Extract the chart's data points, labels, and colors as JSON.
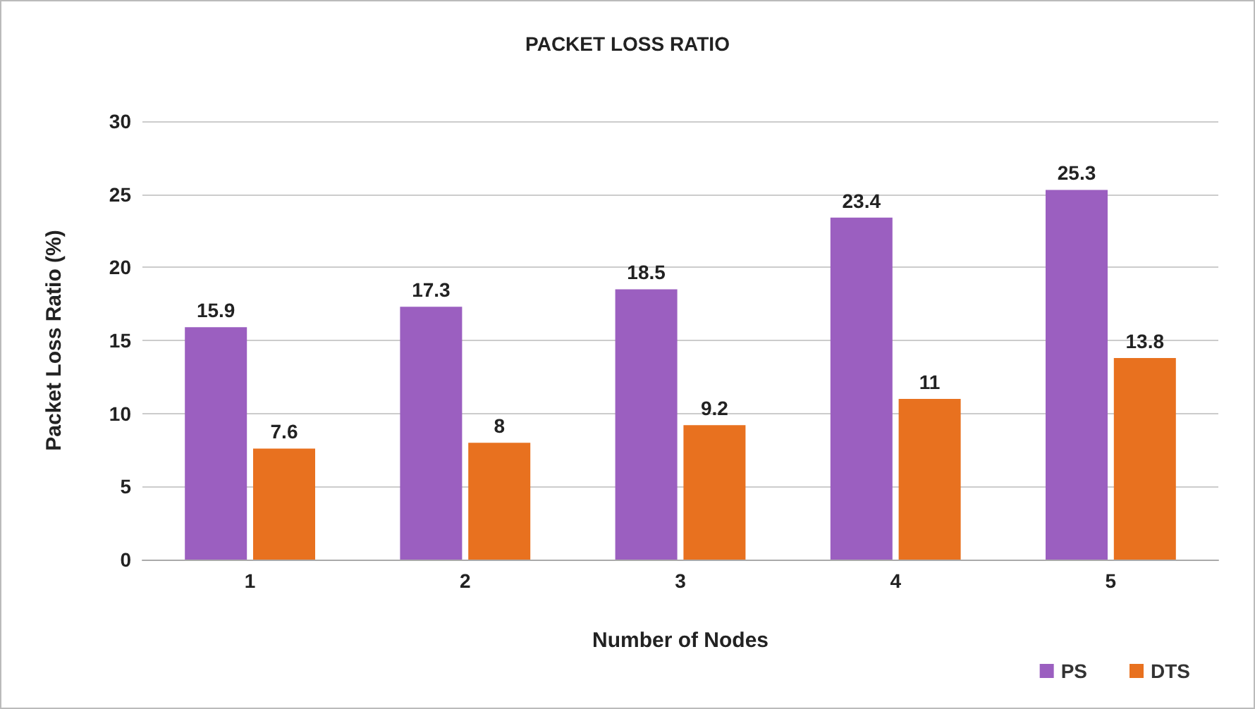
{
  "chart_data": {
    "type": "bar",
    "title": "PACKET LOSS RATIO",
    "xlabel": "Number of Nodes",
    "ylabel": "Packet Loss Ratio (%)",
    "categories": [
      "1",
      "2",
      "3",
      "4",
      "5"
    ],
    "series": [
      {
        "name": "PS",
        "color": "#9b5fc0",
        "values": [
          15.9,
          17.3,
          18.5,
          23.4,
          25.3
        ]
      },
      {
        "name": "DTS",
        "color": "#e8711f",
        "values": [
          7.6,
          8,
          9.2,
          11,
          13.8
        ]
      }
    ],
    "ylim": [
      0,
      30
    ],
    "yticks": [
      0,
      5,
      10,
      15,
      20,
      25,
      30
    ],
    "grid": "y",
    "legend": "bottom right",
    "data_labels": true
  }
}
